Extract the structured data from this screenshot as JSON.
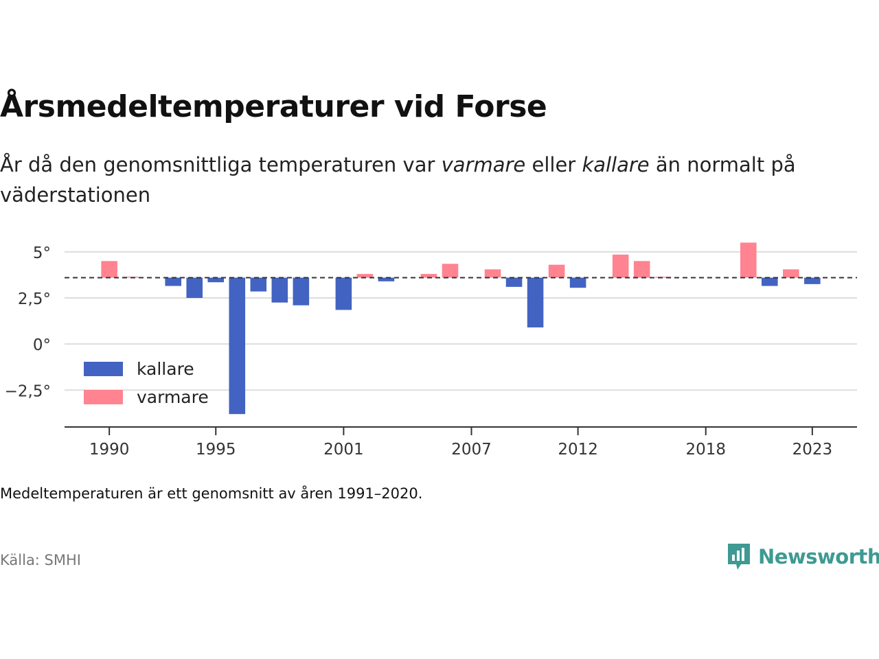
{
  "title": "Årsmedeltemperaturer vid Forse",
  "subtitle": {
    "part1": "År då den genomsnittliga temperaturen var ",
    "warm_word": "varmare",
    "part2": " eller ",
    "cold_word": "kallare",
    "part3": " än normalt på väderstationen"
  },
  "note": "Medeltemperaturen är ett genomsnitt av åren 1991–2020.",
  "source": "Källa: SMHI",
  "brand": {
    "name": "Newsworthy",
    "icon": "newsworthy-logo-icon"
  },
  "colors": {
    "cold": "#4263c1",
    "warm": "#ff8391",
    "grid": "#dddddd",
    "reference": "#333333"
  },
  "chart_data": {
    "type": "bar",
    "baseline": 3.6,
    "x": [
      1990,
      1991,
      1992,
      1993,
      1994,
      1995,
      1996,
      1997,
      1998,
      1999,
      2000,
      2001,
      2002,
      2003,
      2004,
      2005,
      2006,
      2007,
      2008,
      2009,
      2010,
      2011,
      2012,
      2013,
      2014,
      2015,
      2016,
      2017,
      2018,
      2019,
      2020,
      2021,
      2022,
      2023
    ],
    "values": [
      4.5,
      3.65,
      3.6,
      3.15,
      2.5,
      3.35,
      -3.8,
      2.85,
      2.25,
      2.1,
      3.6,
      1.85,
      3.8,
      3.4,
      3.6,
      3.8,
      4.35,
      3.6,
      4.05,
      3.1,
      0.9,
      4.3,
      3.05,
      3.6,
      4.85,
      4.5,
      3.65,
      3.6,
      3.6,
      3.6,
      5.5,
      3.15,
      4.05,
      3.25
    ],
    "x_ticks": [
      1990,
      1995,
      2001,
      2007,
      2012,
      2018,
      2023
    ],
    "y_ticks": [
      {
        "value": 5,
        "label": "5°"
      },
      {
        "value": 2.5,
        "label": "2,5°"
      },
      {
        "value": 0,
        "label": "0°"
      },
      {
        "value": -2.5,
        "label": "−2,5°"
      }
    ],
    "ylim": [
      -4.5,
      6
    ],
    "xlim": [
      1987.9,
      2025.1
    ],
    "grid": true,
    "legend": {
      "position": "bottom-left",
      "items": [
        {
          "label": "kallare",
          "color_key": "cold"
        },
        {
          "label": "varmare",
          "color_key": "warm"
        }
      ]
    }
  }
}
